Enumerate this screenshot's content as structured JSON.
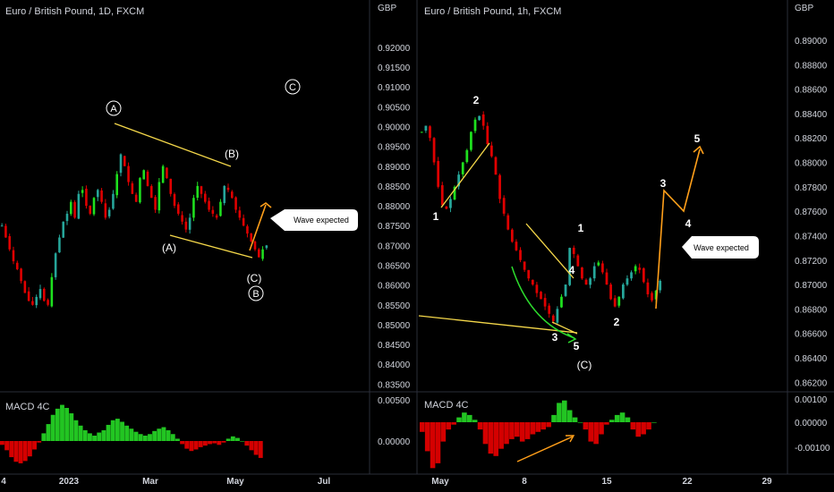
{
  "theme": {
    "background": "#000000",
    "grid_line": "#2a2e39",
    "text": "#d1d4dc",
    "candle_up": "#26a69a",
    "candle_up_bright": "#1ee01e",
    "candle_down": "#e00000",
    "macd_up": "#22c522",
    "macd_down": "#d40000",
    "trendline": "#f5d84a",
    "projection": "#ff9f1a",
    "arc": "#2ddc2d"
  },
  "left_panel": {
    "title": "Euro / British Pound, 1D, FXCM",
    "currency": "GBP",
    "indicator_label": "MACD 4C",
    "wave_labels": {
      "A_circle": "A",
      "B_paren": "(B)",
      "A_paren": "(A)",
      "C_paren": "(C)",
      "B_circle": "B",
      "C_circle": "C"
    },
    "callout": "Wave expected"
  },
  "right_panel": {
    "title": "Euro / British Pound, 1h, FXCM",
    "currency": "GBP",
    "indicator_label": "MACD 4C",
    "wave_labels": {
      "w1": "1",
      "w2": "2",
      "w3": "3",
      "w4": "4",
      "w5": "5",
      "c1": "1",
      "c2": "2",
      "c3": "3",
      "c4": "4",
      "c5": "5",
      "C_paren": "(C)"
    },
    "callout": "Wave expected"
  },
  "chart_data": [
    {
      "type": "line",
      "title": "Euro / British Pound, 1D, FXCM",
      "note": "candlestick chart, approximate daily closes",
      "x_ticks": [
        "4",
        "2023",
        "Mar",
        "May",
        "Jul"
      ],
      "y_ticks": [
        "0.92000",
        "0.91500",
        "0.91000",
        "0.90500",
        "0.90000",
        "0.89500",
        "0.89000",
        "0.88500",
        "0.88000",
        "0.87500",
        "0.87000",
        "0.86500",
        "0.86000",
        "0.85500",
        "0.85000",
        "0.84500",
        "0.84000",
        "0.83500"
      ],
      "ylim": [
        0.8335,
        0.9245
      ],
      "price": [
        0.875,
        0.872,
        0.869,
        0.866,
        0.864,
        0.861,
        0.858,
        0.856,
        0.855,
        0.857,
        0.859,
        0.856,
        0.855,
        0.862,
        0.868,
        0.872,
        0.876,
        0.878,
        0.881,
        0.877,
        0.883,
        0.884,
        0.88,
        0.878,
        0.882,
        0.884,
        0.881,
        0.877,
        0.879,
        0.883,
        0.888,
        0.893,
        0.89,
        0.886,
        0.883,
        0.881,
        0.887,
        0.889,
        0.885,
        0.882,
        0.879,
        0.886,
        0.89,
        0.887,
        0.883,
        0.88,
        0.878,
        0.876,
        0.874,
        0.877,
        0.882,
        0.885,
        0.883,
        0.881,
        0.879,
        0.878,
        0.877,
        0.881,
        0.885,
        0.884,
        0.882,
        0.879,
        0.877,
        0.875,
        0.873,
        0.871,
        0.869,
        0.867,
        0.869,
        0.87
      ],
      "macd": {
        "zero_label": "0.00000",
        "top_label": "0.00500",
        "values": [
          -0.0005,
          -0.0012,
          -0.0021,
          -0.0027,
          -0.0029,
          -0.0026,
          -0.002,
          -0.0011,
          -0.0002,
          0.001,
          0.0022,
          0.0034,
          0.0042,
          0.0047,
          0.0043,
          0.0036,
          0.0027,
          0.002,
          0.0014,
          0.001,
          0.0007,
          0.0011,
          0.0014,
          0.0021,
          0.0027,
          0.0029,
          0.0025,
          0.002,
          0.0016,
          0.0012,
          0.0009,
          0.0007,
          0.0009,
          0.0013,
          0.0016,
          0.0018,
          0.0014,
          0.0009,
          0.0003,
          -0.0004,
          -0.001,
          -0.0013,
          -0.0011,
          -0.0008,
          -0.0006,
          -0.0004,
          -0.0003,
          -0.0005,
          -0.0002,
          0.0003,
          0.0006,
          0.0004,
          0.0,
          -0.0006,
          -0.0012,
          -0.0018,
          -0.0022
        ]
      }
    },
    {
      "type": "line",
      "title": "Euro / British Pound, 1h, FXCM",
      "note": "candlestick chart, approximate hourly closes",
      "x_ticks": [
        "May",
        "8",
        "15",
        "22",
        "29"
      ],
      "y_ticks": [
        "0.89000",
        "0.88800",
        "0.88600",
        "0.88400",
        "0.88200",
        "0.88000",
        "0.87800",
        "0.87600",
        "0.87400",
        "0.87200",
        "0.87000",
        "0.86800",
        "0.86600",
        "0.86400",
        "0.86200"
      ],
      "ylim": [
        0.8618,
        0.8911
      ],
      "price": [
        0.8825,
        0.883,
        0.882,
        0.88,
        0.878,
        0.8765,
        0.8762,
        0.877,
        0.878,
        0.879,
        0.88,
        0.881,
        0.8825,
        0.8835,
        0.8838,
        0.883,
        0.8815,
        0.8805,
        0.879,
        0.877,
        0.8758,
        0.8745,
        0.8735,
        0.8728,
        0.872,
        0.8712,
        0.8705,
        0.87,
        0.8693,
        0.8688,
        0.8682,
        0.8676,
        0.867,
        0.868,
        0.869,
        0.87,
        0.873,
        0.8725,
        0.8715,
        0.8705,
        0.87,
        0.8705,
        0.8715,
        0.8718,
        0.871,
        0.87,
        0.8688,
        0.8682,
        0.869,
        0.87,
        0.8705,
        0.871,
        0.8715,
        0.8712,
        0.8702,
        0.8692,
        0.8687,
        0.8695,
        0.8703
      ],
      "projection": [
        {
          "label": "3",
          "value": 0.8783
        },
        {
          "label": "4",
          "value": 0.8742
        },
        {
          "label": "5",
          "value": 0.8803
        }
      ],
      "macd": {
        "top_label": "0.00100",
        "zero_label": "0.00000",
        "bottom_label": "-0.00100",
        "values": [
          -0.0004,
          -0.0012,
          -0.0019,
          -0.0017,
          -0.0008,
          -0.0003,
          -0.0001,
          0.0002,
          0.0004,
          0.0003,
          0.0001,
          -0.0003,
          -0.0009,
          -0.0013,
          -0.0014,
          -0.0011,
          -0.0009,
          -0.0007,
          -0.0006,
          -0.0008,
          -0.0007,
          -0.0005,
          -0.0004,
          -0.0003,
          -0.0002,
          0.0003,
          0.0008,
          0.0009,
          0.0005,
          0.0002,
          0.0,
          -0.0003,
          -0.0008,
          -0.0009,
          -0.0005,
          -0.0001,
          0.0001,
          0.0003,
          0.0004,
          0.0002,
          -0.0003,
          -0.0006,
          -0.0005,
          -0.0003,
          0.0
        ]
      }
    }
  ]
}
